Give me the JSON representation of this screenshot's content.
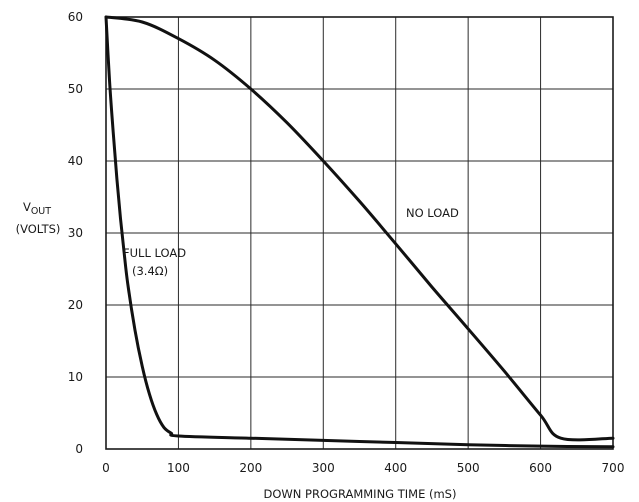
{
  "chart_data": {
    "type": "line",
    "xlabel": "DOWN PROGRAMMING TIME (mS)",
    "ylabel": {
      "main": "V",
      "subscript": "OUT",
      "unit": "(VOLTS)"
    },
    "xlim": [
      0,
      700
    ],
    "ylim": [
      0,
      60
    ],
    "x_ticks": [
      0,
      100,
      200,
      300,
      400,
      500,
      600,
      700
    ],
    "y_ticks": [
      0,
      10,
      20,
      30,
      40,
      50,
      60
    ],
    "grid": true,
    "series": [
      {
        "name": "NO LOAD",
        "x": [
          0,
          50,
          100,
          150,
          200,
          250,
          300,
          350,
          400,
          450,
          500,
          550,
          600,
          628,
          700
        ],
        "y": [
          60,
          59.3,
          57,
          54,
          50,
          45.3,
          40,
          34.4,
          28.5,
          22.5,
          16.7,
          10.8,
          4.7,
          1.5,
          1.5
        ]
      },
      {
        "name": "FULL LOAD",
        "name_line2": "(3.4Ω)",
        "x": [
          0,
          5,
          10,
          15,
          20,
          25,
          30,
          40,
          50,
          60,
          70,
          80,
          90,
          100,
          200,
          300,
          400,
          500,
          600,
          700
        ],
        "y": [
          60,
          51,
          44,
          37.5,
          32,
          27.3,
          23,
          16.5,
          11.5,
          7.6,
          4.8,
          3,
          2.2,
          1.8,
          1.5,
          1.2,
          0.9,
          0.6,
          0.4,
          0.3
        ]
      }
    ]
  }
}
